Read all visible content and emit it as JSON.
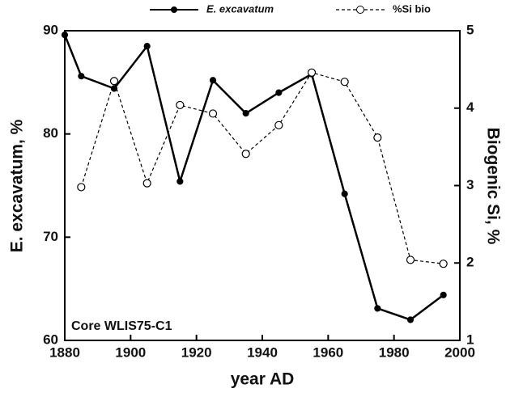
{
  "chart_data": {
    "type": "line",
    "x_label": "year AD",
    "y_label": "E. excavatum, %",
    "y2_label": "Biogenic Si, %",
    "annotation": "Core WLIS75-C1",
    "xlim": [
      1880,
      2000
    ],
    "xticks": [
      1880,
      1900,
      1920,
      1940,
      1960,
      1980,
      2000
    ],
    "ylim": [
      60,
      90
    ],
    "yticks": [
      60,
      70,
      80,
      90
    ],
    "y2lim": [
      1,
      5
    ],
    "y2ticks": [
      1,
      2,
      3,
      4,
      5
    ],
    "legend": "top",
    "series": [
      {
        "name": "E. excavatum",
        "color": "#000000",
        "style": "solid",
        "marker": "filled",
        "x": [
          1880,
          1885,
          1895,
          1905,
          1915,
          1925,
          1935,
          1945,
          1955,
          1965,
          1975,
          1985,
          1995
        ],
        "values": [
          89.6,
          85.6,
          84.4,
          88.5,
          75.4,
          85.2,
          82.0,
          84.0,
          85.8,
          74.2,
          63.1,
          62.0,
          64.4
        ]
      },
      {
        "name": "%Si bio",
        "color": "#000000",
        "style": "dashed",
        "marker": "open",
        "axis": "y2",
        "x": [
          1885,
          1895,
          1905,
          1915,
          1925,
          1935,
          1945,
          1955,
          1965,
          1975,
          1985,
          1995
        ],
        "values": [
          2.98,
          4.35,
          3.03,
          4.04,
          3.93,
          3.41,
          3.78,
          4.46,
          4.34,
          3.62,
          2.04,
          1.99
        ]
      }
    ]
  }
}
